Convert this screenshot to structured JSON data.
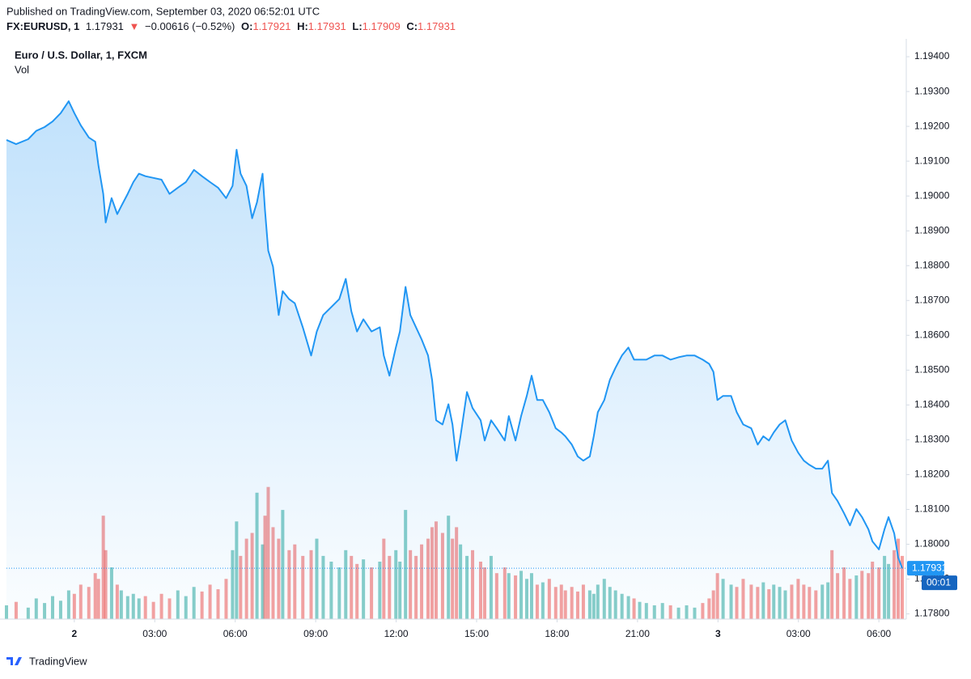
{
  "header": {
    "published": "Published on TradingView.com, September 03, 2020 06:52:01 UTC",
    "symbol": "FX:EURUSD, 1",
    "last": "1.17931",
    "arrow": "▼",
    "change": "−0.00616 (−0.52%)",
    "ohlc": [
      {
        "label": "O:",
        "value": "1.17921"
      },
      {
        "label": "H:",
        "value": "1.17931"
      },
      {
        "label": "L:",
        "value": "1.17909"
      },
      {
        "label": "C:",
        "value": "1.17931"
      }
    ]
  },
  "footer": {
    "brand": "TradingView"
  },
  "chart_data": {
    "type": "line",
    "countdown": "00:01",
    "grid": false,
    "x": [
      -2.53,
      -2.17,
      -1.72,
      -1.42,
      -1.11,
      -0.81,
      -0.51,
      -0.21,
      0,
      0.24,
      0.54,
      0.78,
      0.9,
      1.08,
      1.17,
      1.39,
      1.6,
      1.75,
      1.99,
      2.2,
      2.41,
      2.65,
      2.95,
      3.25,
      3.55,
      3.86,
      4.16,
      4.46,
      4.76,
      5.06,
      5.36,
      5.66,
      5.9,
      6.05,
      6.2,
      6.42,
      6.63,
      6.81,
      7.02,
      7.11,
      7.23,
      7.41,
      7.62,
      7.77,
      8.01,
      8.22,
      8.52,
      8.83,
      9.04,
      9.28,
      9.58,
      9.88,
      10.12,
      10.33,
      10.54,
      10.78,
      11.08,
      11.39,
      11.54,
      11.75,
      11.99,
      12.14,
      12.35,
      12.53,
      12.74,
      12.95,
      13.19,
      13.34,
      13.49,
      13.73,
      13.95,
      14.1,
      14.25,
      14.4,
      14.64,
      14.85,
      15.15,
      15.3,
      15.54,
      15.75,
      16.05,
      16.2,
      16.45,
      16.66,
      16.87,
      17.05,
      17.26,
      17.47,
      17.71,
      17.95,
      18.16,
      18.31,
      18.55,
      18.77,
      18.98,
      19.22,
      19.37,
      19.52,
      19.76,
      19.97,
      20.18,
      20.42,
      20.66,
      20.87,
      21.08,
      21.33,
      21.63,
      21.93,
      22.23,
      22.53,
      22.83,
      23.13,
      23.43,
      23.67,
      23.83,
      23.98,
      24.19,
      24.49,
      24.7,
      24.94,
      25.24,
      25.48,
      25.69,
      25.9,
      26.08,
      26.3,
      26.51,
      26.75,
      26.99,
      27.2,
      27.41,
      27.65,
      27.89,
      28.1,
      28.25,
      28.46,
      28.7,
      28.92,
      29.16,
      29.37,
      29.61,
      29.76,
      30,
      30.21,
      30.36,
      30.57,
      30.72,
      30.87
    ],
    "xlim": [
      -2.53,
      30.87
    ],
    "xticks": [
      {
        "value": 0,
        "label": "2"
      },
      {
        "value": 3,
        "label": "03:00"
      },
      {
        "value": 6,
        "label": "06:00"
      },
      {
        "value": 9,
        "label": "09:00"
      },
      {
        "value": 12,
        "label": "12:00"
      },
      {
        "value": 15,
        "label": "15:00"
      },
      {
        "value": 18,
        "label": "18:00"
      },
      {
        "value": 21,
        "label": "21:00"
      },
      {
        "value": 24,
        "label": "3"
      },
      {
        "value": 27,
        "label": "03:00"
      },
      {
        "value": 30,
        "label": "06:00"
      }
    ],
    "ylim": [
      1.17785,
      1.19435
    ],
    "yticks": [
      {
        "value": 1.178,
        "label": "1.17800"
      },
      {
        "value": 1.179,
        "label": "1.17900"
      },
      {
        "value": 1.18,
        "label": "1.18000"
      },
      {
        "value": 1.181,
        "label": "1.18100"
      },
      {
        "value": 1.182,
        "label": "1.18200"
      },
      {
        "value": 1.183,
        "label": "1.18300"
      },
      {
        "value": 1.184,
        "label": "1.18400"
      },
      {
        "value": 1.185,
        "label": "1.18500"
      },
      {
        "value": 1.186,
        "label": "1.18600"
      },
      {
        "value": 1.187,
        "label": "1.18700"
      },
      {
        "value": 1.188,
        "label": "1.18800"
      },
      {
        "value": 1.189,
        "label": "1.18900"
      },
      {
        "value": 1.19,
        "label": "1.19000"
      },
      {
        "value": 1.191,
        "label": "1.19100"
      },
      {
        "value": 1.192,
        "label": "1.19200"
      },
      {
        "value": 1.193,
        "label": "1.19300"
      },
      {
        "value": 1.194,
        "label": "1.19400"
      }
    ],
    "y2lim": [
      0,
      500
    ],
    "series": [
      {
        "name": "Euro / U.S. Dollar, 1, FXCM",
        "color": "#2196f3",
        "values": [
          1.19161,
          1.19149,
          1.19163,
          1.19187,
          1.19198,
          1.19214,
          1.19238,
          1.19272,
          1.19238,
          1.19203,
          1.19168,
          1.19156,
          1.19087,
          1.19006,
          1.18924,
          1.18994,
          1.18948,
          1.18971,
          1.19006,
          1.1904,
          1.19064,
          1.19057,
          1.19052,
          1.19047,
          1.19006,
          1.19024,
          1.1904,
          1.19075,
          1.19057,
          1.1904,
          1.19024,
          1.18994,
          1.19029,
          1.19133,
          1.19064,
          1.19029,
          1.18936,
          1.18982,
          1.19064,
          1.18959,
          1.18843,
          1.18797,
          1.18658,
          1.18727,
          1.18704,
          1.18692,
          1.18623,
          1.18542,
          1.18611,
          1.18658,
          1.18681,
          1.18704,
          1.18762,
          1.18669,
          1.18611,
          1.18646,
          1.18611,
          1.18623,
          1.18542,
          1.18484,
          1.18565,
          1.18611,
          1.18739,
          1.18658,
          1.18623,
          1.18588,
          1.18542,
          1.18472,
          1.18356,
          1.18344,
          1.18402,
          1.18344,
          1.1824,
          1.1831,
          1.18437,
          1.18391,
          1.18356,
          1.18298,
          1.18356,
          1.18333,
          1.18298,
          1.18368,
          1.18298,
          1.18368,
          1.18426,
          1.18484,
          1.18414,
          1.18414,
          1.18379,
          1.18333,
          1.18321,
          1.1831,
          1.18286,
          1.18252,
          1.1824,
          1.18252,
          1.1831,
          1.18379,
          1.18414,
          1.18472,
          1.18507,
          1.18542,
          1.18565,
          1.1853,
          1.1853,
          1.1853,
          1.18542,
          1.18542,
          1.1853,
          1.18537,
          1.18542,
          1.18542,
          1.1853,
          1.18518,
          1.18495,
          1.18414,
          1.18426,
          1.18426,
          1.18379,
          1.18344,
          1.18333,
          1.18286,
          1.1831,
          1.18298,
          1.18321,
          1.18344,
          1.18356,
          1.18298,
          1.18263,
          1.1824,
          1.18228,
          1.18217,
          1.18217,
          1.1824,
          1.18147,
          1.18124,
          1.18089,
          1.18054,
          1.18101,
          1.18078,
          1.18043,
          1.18008,
          1.17985,
          1.18043,
          1.18078,
          1.18031,
          1.17962,
          1.17931
        ]
      },
      {
        "name": "Vol",
        "type": "bar",
        "axis": "y2",
        "up_color": "#26a69a",
        "down_color": "#ef5350",
        "values": [
          12,
          15,
          10,
          18,
          14,
          20,
          16,
          25,
          22,
          30,
          28,
          40,
          35,
          90,
          60,
          45,
          30,
          25,
          20,
          22,
          18,
          20,
          15,
          22,
          18,
          25,
          20,
          28,
          24,
          30,
          26,
          35,
          60,
          85,
          55,
          70,
          75,
          110,
          65,
          90,
          115,
          80,
          70,
          95,
          60,
          65,
          55,
          60,
          70,
          55,
          50,
          45,
          60,
          55,
          48,
          52,
          45,
          50,
          70,
          55,
          60,
          50,
          95,
          60,
          55,
          65,
          70,
          80,
          85,
          75,
          90,
          70,
          80,
          65,
          55,
          60,
          50,
          45,
          55,
          40,
          45,
          40,
          38,
          42,
          35,
          40,
          30,
          32,
          35,
          28,
          30,
          25,
          28,
          24,
          30,
          25,
          22,
          30,
          35,
          28,
          25,
          22,
          20,
          18,
          15,
          14,
          12,
          14,
          12,
          10,
          12,
          10,
          14,
          18,
          25,
          40,
          35,
          30,
          28,
          35,
          30,
          28,
          32,
          26,
          30,
          28,
          25,
          30,
          35,
          30,
          28,
          25,
          30,
          32,
          60,
          40,
          45,
          35,
          38,
          42,
          40,
          50,
          45,
          55,
          48,
          60,
          70,
          55
        ]
      }
    ]
  }
}
